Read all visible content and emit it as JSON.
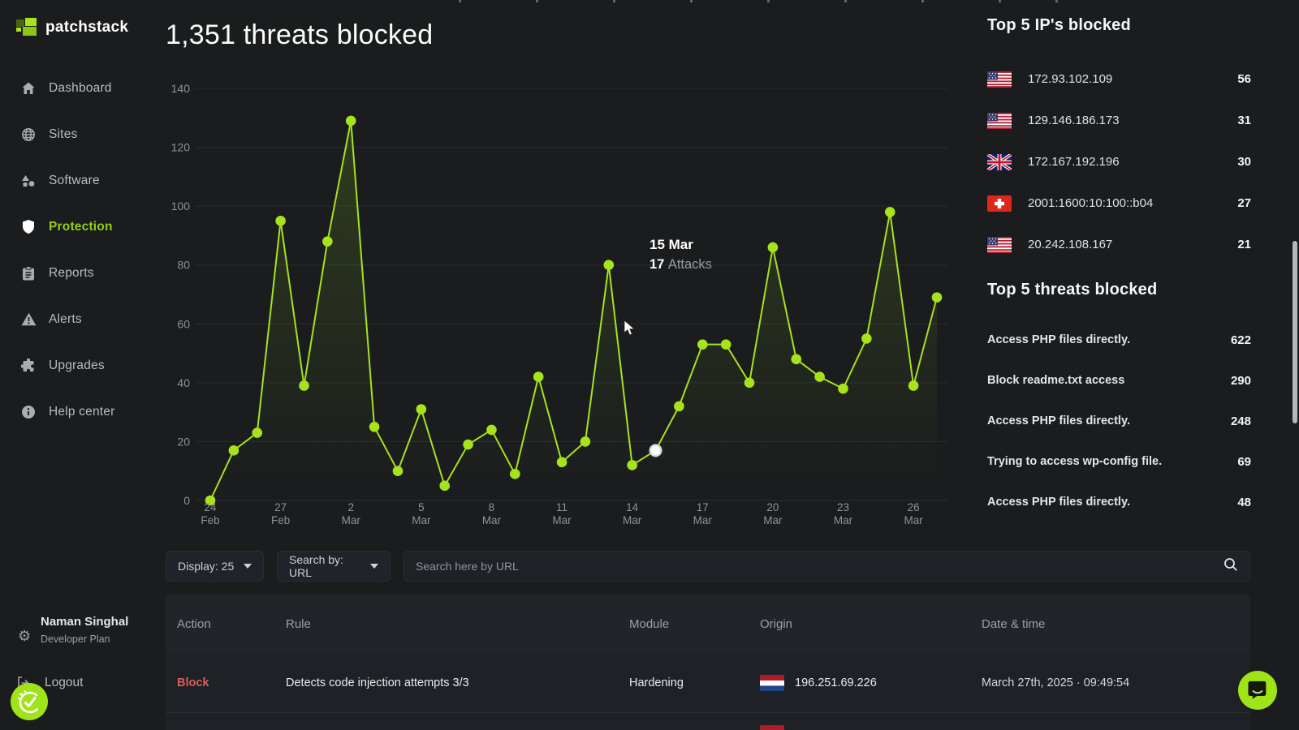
{
  "app": {
    "brand": "patchstack"
  },
  "sidebar": {
    "items": [
      {
        "label": "Dashboard",
        "icon": "home-icon",
        "active": false
      },
      {
        "label": "Sites",
        "icon": "globe-icon",
        "active": false
      },
      {
        "label": "Software",
        "icon": "shapes-icon",
        "active": false
      },
      {
        "label": "Protection",
        "icon": "shield-icon",
        "active": true
      },
      {
        "label": "Reports",
        "icon": "clipboard-icon",
        "active": false
      },
      {
        "label": "Alerts",
        "icon": "warning-icon",
        "active": false
      },
      {
        "label": "Upgrades",
        "icon": "puzzle-icon",
        "active": false
      },
      {
        "label": "Help center",
        "icon": "info-icon",
        "active": false
      }
    ],
    "user": {
      "name": "Naman Singhal",
      "plan": "Developer Plan"
    },
    "logout_label": "Logout"
  },
  "header": {
    "title": "1,351 threats blocked"
  },
  "chart_data": {
    "type": "line",
    "title": "1,351 threats blocked",
    "x": [
      "24 Feb",
      "25 Feb",
      "26 Feb",
      "27 Feb",
      "28 Feb",
      "1 Mar",
      "2 Mar",
      "3 Mar",
      "4 Mar",
      "5 Mar",
      "6 Mar",
      "7 Mar",
      "8 Mar",
      "9 Mar",
      "10 Mar",
      "11 Mar",
      "12 Mar",
      "13 Mar",
      "14 Mar",
      "15 Mar",
      "16 Mar",
      "17 Mar",
      "18 Mar",
      "19 Mar",
      "20 Mar",
      "21 Mar",
      "22 Mar",
      "23 Mar",
      "24 Mar",
      "25 Mar",
      "26 Mar",
      "27 Mar"
    ],
    "values": [
      0,
      17,
      23,
      95,
      39,
      88,
      129,
      25,
      10,
      31,
      5,
      19,
      24,
      9,
      42,
      13,
      20,
      80,
      12,
      17,
      32,
      53,
      53,
      40,
      86,
      48,
      42,
      38,
      55,
      98,
      39,
      69
    ],
    "xlabel": "",
    "ylabel": "",
    "ylim": [
      0,
      140
    ],
    "yticks": [
      0,
      20,
      40,
      60,
      80,
      100,
      120,
      140
    ],
    "tick_every": 3,
    "grid": "horizontal",
    "legend": "none",
    "line_color": "#a6e31d",
    "selected_index": 19,
    "tooltip": {
      "label": "15 Mar",
      "value": "17",
      "suffix": "Attacks"
    }
  },
  "filters": {
    "display": "Display: 25",
    "search_by": "Search by: URL",
    "search_placeholder": "Search here by URL",
    "search_value": ""
  },
  "table": {
    "columns": [
      "Action",
      "Rule",
      "Module",
      "Origin",
      "Date & time"
    ],
    "rows": [
      {
        "action": "Block",
        "rule": "Detects code injection attempts 3/3",
        "module": "Hardening",
        "origin_flag": "netherlands",
        "origin_ip": "196.251.69.226",
        "datetime": "March 27th, 2025 · 09:49:54"
      }
    ],
    "partial_next_row_flag": "netherlands"
  },
  "right_panel": {
    "top_ips": {
      "title": "Top 5 IP's blocked",
      "rows": [
        {
          "flag": "usa",
          "ip": "172.93.102.109",
          "count": "56"
        },
        {
          "flag": "usa",
          "ip": "129.146.186.173",
          "count": "31"
        },
        {
          "flag": "uk",
          "ip": "172.167.192.196",
          "count": "30"
        },
        {
          "flag": "switzerland",
          "ip": "2001:1600:10:100::b04",
          "count": "27"
        },
        {
          "flag": "usa",
          "ip": "20.242.108.167",
          "count": "21"
        }
      ]
    },
    "top_threats": {
      "title": "Top 5 threats blocked",
      "rows": [
        {
          "name": "Access PHP files directly.",
          "count": "622"
        },
        {
          "name": "Block readme.txt access",
          "count": "290"
        },
        {
          "name": "Access PHP files directly.",
          "count": "248"
        },
        {
          "name": "Trying to access wp-config file.",
          "count": "69"
        },
        {
          "name": "Access PHP files directly.",
          "count": "48"
        }
      ]
    }
  },
  "colors": {
    "background": "#1a1c1e",
    "accent_lime": "#a6e31d",
    "nav_active": "#94ce15",
    "danger_red": "#e15b5b",
    "grid_line": "#292c2e",
    "axis_text": "#8d9398",
    "panel": "#212428"
  }
}
